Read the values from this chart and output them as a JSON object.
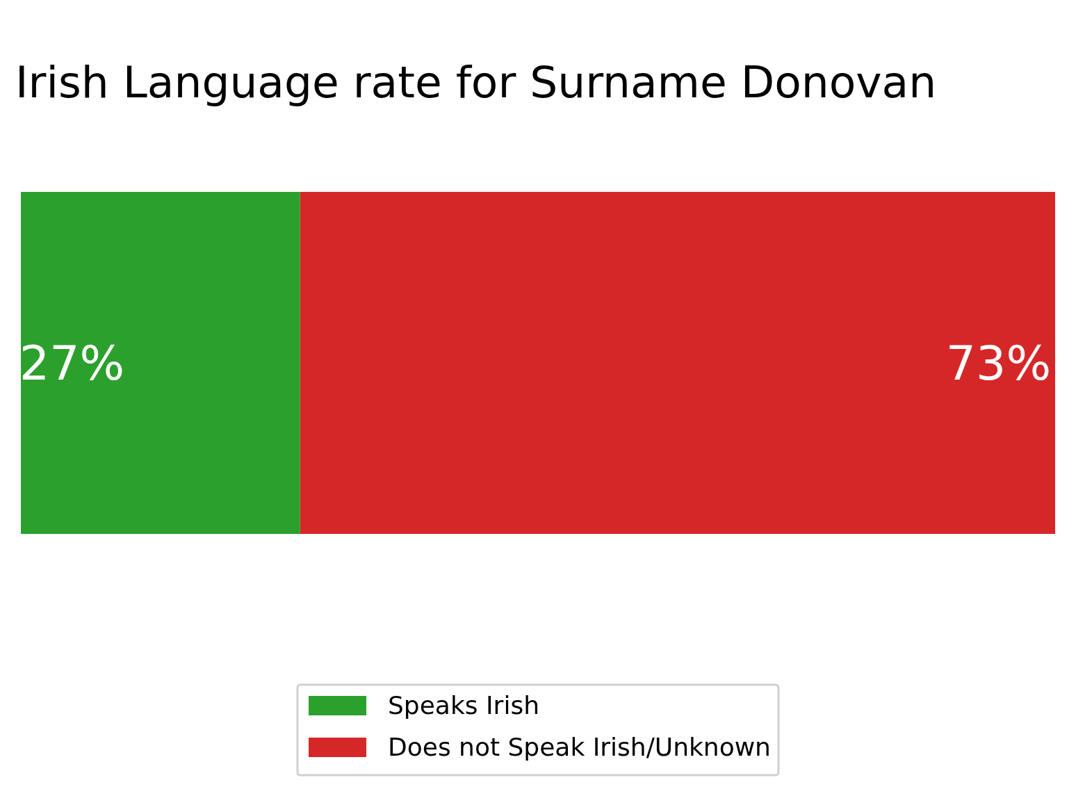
{
  "chart_data": {
    "type": "bar",
    "title": "Irish Language rate for Surname Donovan",
    "orientation": "horizontal",
    "stacked": true,
    "categories": [
      null
    ],
    "xlim": [
      0,
      100
    ],
    "tick_labels": false,
    "legend": "bottom",
    "series": [
      {
        "name": "Speaks Irish",
        "color": "#2ca02c",
        "values": [
          27
        ],
        "value_labels": [
          "27%"
        ]
      },
      {
        "name": "Does not Speak Irish/Unknown",
        "color": "#d62728",
        "values": [
          73
        ],
        "value_labels": [
          "73%"
        ]
      }
    ]
  }
}
